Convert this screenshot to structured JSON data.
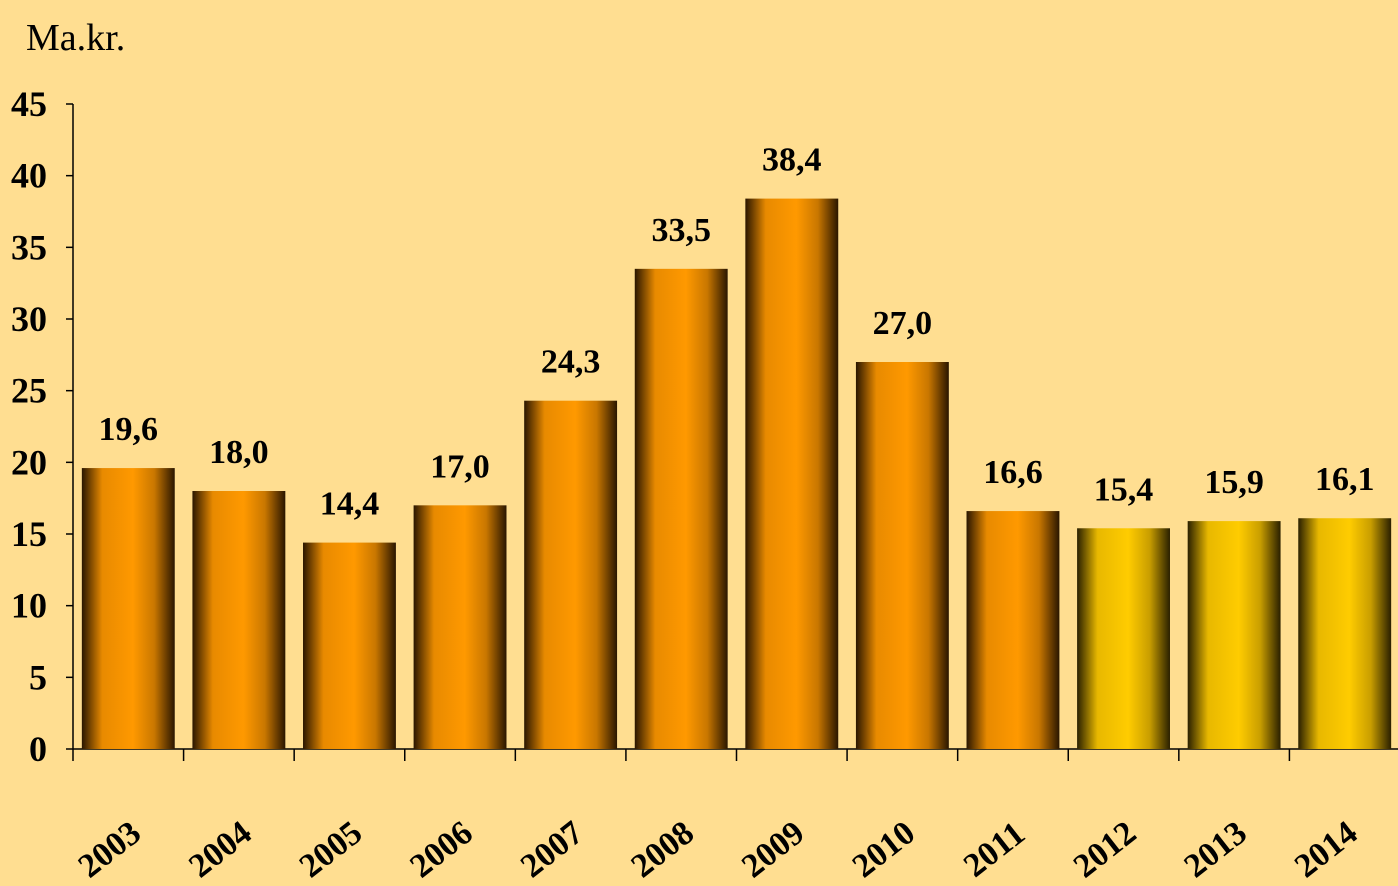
{
  "chart_data": {
    "type": "bar",
    "unit_label": "Ma.kr.",
    "ylim": [
      0,
      45
    ],
    "yticks": [
      0,
      5,
      10,
      15,
      20,
      25,
      30,
      35,
      40,
      45
    ],
    "categories": [
      "2003",
      "2004",
      "2005",
      "2006",
      "2007",
      "2008",
      "2009",
      "2010",
      "2011",
      "2012",
      "2013",
      "2014"
    ],
    "values": [
      19.6,
      18.0,
      14.4,
      17.0,
      24.3,
      33.5,
      38.4,
      27.0,
      16.6,
      15.4,
      15.9,
      16.1
    ],
    "value_labels": [
      "19,6",
      "18,0",
      "14,4",
      "17,0",
      "24,3",
      "33,5",
      "38,4",
      "27,0",
      "16,6",
      "15,4",
      "15,9",
      "16,1"
    ],
    "bar_colors": [
      "#FF9900",
      "#FF9900",
      "#FF9900",
      "#FF9900",
      "#FF9900",
      "#FF9900",
      "#FF9900",
      "#FF9900",
      "#FF9900",
      "#FFCC00",
      "#FFCC00",
      "#FFCC00"
    ],
    "background": "#FFDE91",
    "grid": false,
    "legend": "none"
  }
}
